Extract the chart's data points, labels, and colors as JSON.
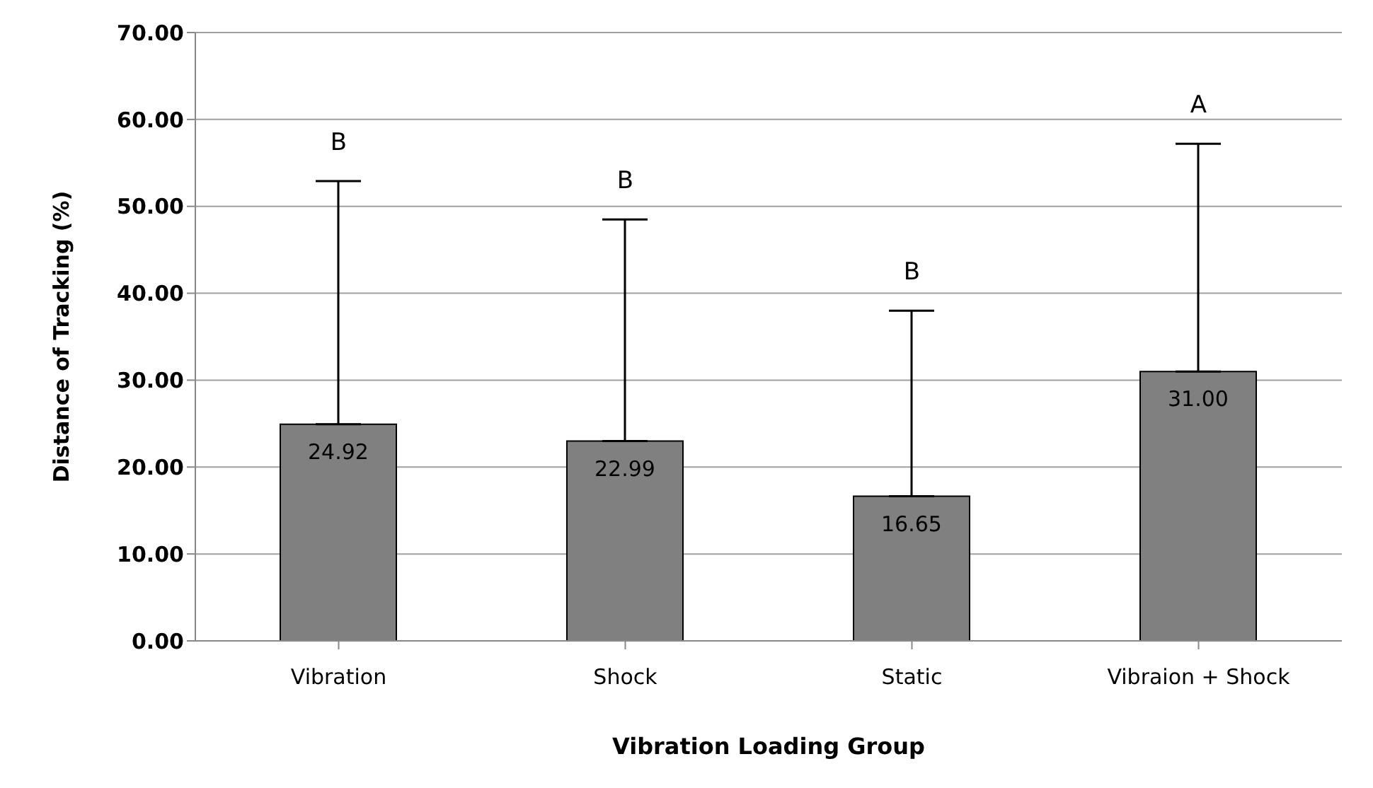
{
  "chart_data": {
    "type": "bar",
    "xlabel": "Vibration Loading Group",
    "ylabel": "Distance of Tracking  (%)",
    "categories": [
      "Vibration",
      "Shock",
      "Static",
      "Vibraion + Shock"
    ],
    "values": [
      24.92,
      22.99,
      16.65,
      31.0
    ],
    "color": "#808080",
    "errors": [
      [
        24.92,
        52.9
      ],
      [
        22.99,
        48.5
      ],
      [
        16.65,
        38.0
      ],
      [
        31.0,
        57.2
      ]
    ],
    "value_labels": [
      "24.92",
      "22.99",
      "16.65",
      "31.00"
    ],
    "ylim": [
      0,
      70
    ],
    "yticks": [
      {
        "value": 0,
        "label": "0.00"
      },
      {
        "value": 10,
        "label": "10.00"
      },
      {
        "value": 20,
        "label": "20.00"
      },
      {
        "value": 30,
        "label": "30.00"
      },
      {
        "value": 40,
        "label": "40.00"
      },
      {
        "value": 50,
        "label": "50.00"
      },
      {
        "value": 60,
        "label": "60.00"
      },
      {
        "value": 70,
        "label": "70.00"
      }
    ],
    "grid": "y",
    "annotations": [
      {
        "text": "B",
        "x": "Vibration",
        "y": 52.9
      },
      {
        "text": "B",
        "x": "Shock",
        "y": 48.5
      },
      {
        "text": "B",
        "x": "Static",
        "y": 38.0
      },
      {
        "text": "A",
        "x": "Vibraion + Shock",
        "y": 57.2
      }
    ]
  }
}
